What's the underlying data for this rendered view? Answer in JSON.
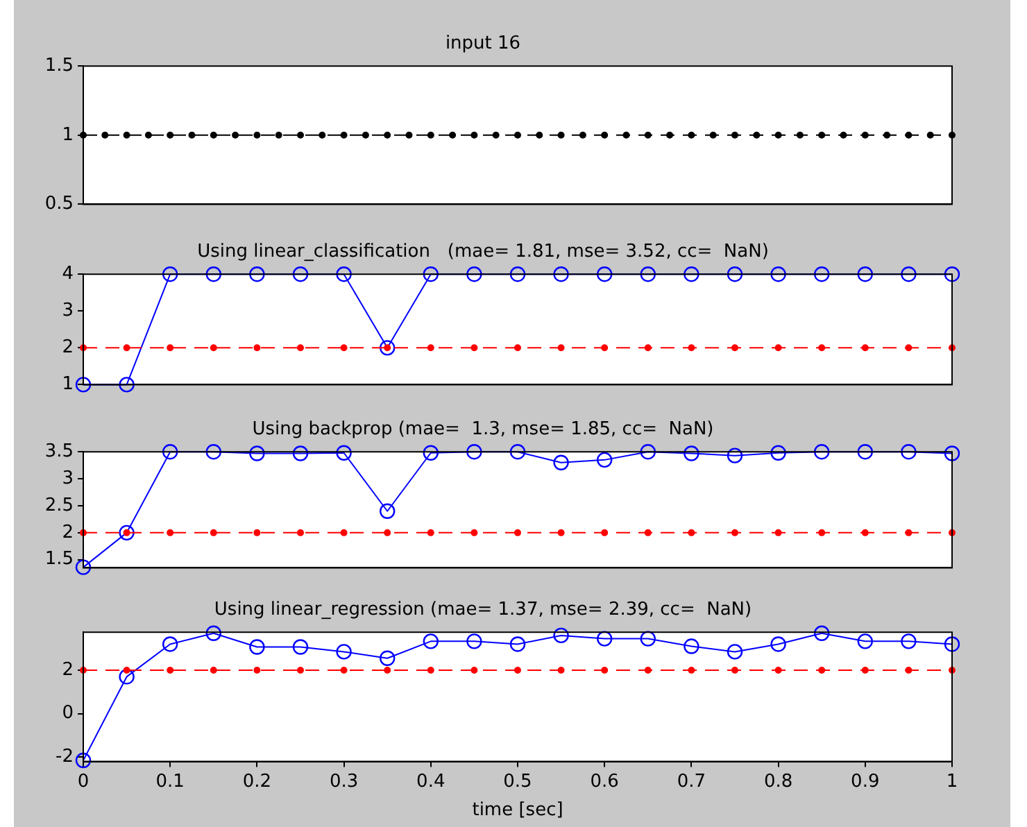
{
  "chart_data": [
    {
      "type": "line",
      "title": "input 16",
      "xlim": [
        0,
        1
      ],
      "ylim": [
        0.5,
        1.5
      ],
      "yticks": [
        0.5,
        1,
        1.5
      ],
      "tick_labels": "y",
      "legend": false,
      "series": [
        {
          "color": "#000000",
          "marker": "circle",
          "line_style": "dashed",
          "x": [
            0,
            0.025,
            0.05,
            0.075,
            0.1,
            0.125,
            0.15,
            0.175,
            0.2,
            0.225,
            0.25,
            0.275,
            0.3,
            0.325,
            0.35,
            0.375,
            0.4,
            0.425,
            0.45,
            0.475,
            0.5,
            0.525,
            0.55,
            0.575,
            0.6,
            0.625,
            0.65,
            0.675,
            0.7,
            0.725,
            0.75,
            0.775,
            0.8,
            0.825,
            0.85,
            0.875,
            0.9,
            0.925,
            0.95,
            0.975,
            1
          ],
          "values": [
            1,
            1,
            1,
            1,
            1,
            1,
            1,
            1,
            1,
            1,
            1,
            1,
            1,
            1,
            1,
            1,
            1,
            1,
            1,
            1,
            1,
            1,
            1,
            1,
            1,
            1,
            1,
            1,
            1,
            1,
            1,
            1,
            1,
            1,
            1,
            1,
            1,
            1,
            1,
            1,
            1
          ]
        }
      ]
    },
    {
      "type": "line",
      "title": "Using linear_classification   (mae= 1.81, mse= 3.52, cc=  NaN)",
      "x": [
        0,
        0.05,
        0.1,
        0.15,
        0.2,
        0.25,
        0.3,
        0.35,
        0.4,
        0.45,
        0.5,
        0.55,
        0.6,
        0.65,
        0.7,
        0.75,
        0.8,
        0.85,
        0.9,
        0.95,
        1
      ],
      "xlim": [
        0,
        1
      ],
      "ylim": [
        1,
        4
      ],
      "yticks": [
        1,
        2,
        3,
        4
      ],
      "tick_labels": "y",
      "legend": false,
      "series": [
        {
          "color": "#ff0000",
          "marker": "circle",
          "line_style": "dashed",
          "values": [
            2,
            2,
            2,
            2,
            2,
            2,
            2,
            2,
            2,
            2,
            2,
            2,
            2,
            2,
            2,
            2,
            2,
            2,
            2,
            2,
            2
          ]
        },
        {
          "color": "#0000ff",
          "marker": "circle",
          "line_style": "solid",
          "values": [
            1,
            1,
            4,
            4,
            4,
            4,
            4,
            2,
            4,
            4,
            4,
            4,
            4,
            4,
            4,
            4,
            4,
            4,
            4,
            4,
            4
          ]
        }
      ]
    },
    {
      "type": "line",
      "title": "Using backprop (mae=  1.3, mse= 1.85, cc=  NaN)",
      "x": [
        0,
        0.05,
        0.1,
        0.15,
        0.2,
        0.25,
        0.3,
        0.35,
        0.4,
        0.45,
        0.5,
        0.55,
        0.6,
        0.65,
        0.7,
        0.75,
        0.8,
        0.85,
        0.9,
        0.95,
        1
      ],
      "xlim": [
        0,
        1
      ],
      "ylim": [
        1.35,
        3.5
      ],
      "yticks": [
        1.5,
        2,
        2.5,
        3,
        3.5
      ],
      "tick_labels": "y",
      "legend": false,
      "series": [
        {
          "color": "#ff0000",
          "marker": "circle",
          "line_style": "dashed",
          "values": [
            2,
            2,
            2,
            2,
            2,
            2,
            2,
            2,
            2,
            2,
            2,
            2,
            2,
            2,
            2,
            2,
            2,
            2,
            2,
            2,
            2
          ]
        },
        {
          "color": "#0000ff",
          "marker": "circle",
          "line_style": "solid",
          "values": [
            1.36,
            2,
            3.5,
            3.5,
            3.47,
            3.47,
            3.48,
            2.4,
            3.48,
            3.5,
            3.5,
            3.3,
            3.35,
            3.5,
            3.47,
            3.43,
            3.48,
            3.5,
            3.5,
            3.5,
            3.47
          ]
        }
      ]
    },
    {
      "type": "line",
      "title": "Using linear_regression (mae= 1.37, mse= 2.39, cc=  NaN)",
      "xlabel": "time [sec]",
      "x": [
        0,
        0.05,
        0.1,
        0.15,
        0.2,
        0.25,
        0.3,
        0.35,
        0.4,
        0.45,
        0.5,
        0.55,
        0.6,
        0.65,
        0.7,
        0.75,
        0.8,
        0.85,
        0.9,
        0.95,
        1
      ],
      "xlim": [
        0,
        1
      ],
      "xticks": [
        0,
        0.1,
        0.2,
        0.3,
        0.4,
        0.5,
        0.6,
        0.7,
        0.8,
        0.9,
        1
      ],
      "ylim": [
        -2.2,
        3.75
      ],
      "yticks": [
        -2,
        0,
        2
      ],
      "legend": false,
      "series": [
        {
          "color": "#ff0000",
          "marker": "circle",
          "line_style": "dashed",
          "values": [
            2,
            2,
            2,
            2,
            2,
            2,
            2,
            2,
            2,
            2,
            2,
            2,
            2,
            2,
            2,
            2,
            2,
            2,
            2,
            2,
            2
          ]
        },
        {
          "color": "#0000ff",
          "marker": "circle",
          "line_style": "solid",
          "values": [
            -2.15,
            1.7,
            3.2,
            3.7,
            3.07,
            3.07,
            2.85,
            2.55,
            3.33,
            3.33,
            3.2,
            3.6,
            3.45,
            3.45,
            3.1,
            2.85,
            3.2,
            3.7,
            3.33,
            3.33,
            3.2
          ]
        }
      ]
    }
  ]
}
